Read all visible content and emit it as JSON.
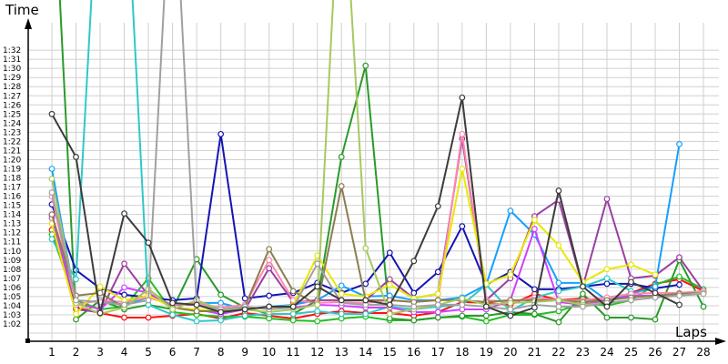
{
  "chart_data": {
    "type": "line",
    "title": "",
    "xlabel": "Laps",
    "ylabel": "Time",
    "x": [
      1,
      2,
      3,
      4,
      5,
      6,
      7,
      8,
      9,
      10,
      11,
      12,
      13,
      14,
      15,
      16,
      17,
      18,
      19,
      20,
      21,
      22,
      23,
      24,
      25,
      26,
      27,
      28
    ],
    "y_unit": "seconds",
    "ylim": [
      60.1,
      95.1
    ],
    "y_tick_labels": [
      "1:02",
      "1:03",
      "1:04",
      "1:05",
      "1:06",
      "1:07",
      "1:08",
      "1:09",
      "1:10",
      "1:11",
      "1:12",
      "1:13",
      "1:14",
      "1:15",
      "1:16",
      "1:17",
      "1:18",
      "1:19",
      "1:20",
      "1:21",
      "1:22",
      "1:23",
      "1:24",
      "1:25",
      "1:26",
      "1:27",
      "1:28",
      "1:29",
      "1:30",
      "1:31",
      "1:32"
    ],
    "x_tick_labels": [
      "1",
      "2",
      "3",
      "4",
      "5",
      "6",
      "7",
      "8",
      "9",
      "10",
      "11",
      "12",
      "13",
      "14",
      "15",
      "16",
      "17",
      "18",
      "19",
      "20",
      "21",
      "22",
      "23",
      "24",
      "25",
      "26",
      "27",
      "28"
    ],
    "grid": true,
    "series": [
      {
        "name": "red",
        "color": "#ff1010",
        "values": [
          72.3,
          63.8,
          63.2,
          62.7,
          62.7,
          62.9,
          63.1,
          62.6,
          63.2,
          62.9,
          62.6,
          63.1,
          63.4,
          63.2,
          63.2,
          62.9,
          63.3,
          64.4,
          64.3,
          64.1,
          65.3,
          64.6,
          64.8,
          64.5,
          65.4,
          66.4,
          66.9,
          65.6
        ]
      },
      {
        "name": "lime",
        "color": "#20c020",
        "values": [
          71.8,
          64.6,
          63.6,
          63.9,
          67.0,
          63.3,
          63.0,
          62.8,
          62.8,
          62.6,
          62.4,
          62.3,
          62.6,
          62.8,
          62.4,
          62.4,
          62.7,
          62.8,
          62.3,
          63.0,
          63.0,
          63.4,
          64.3,
          64.0,
          64.6,
          66.3,
          67.2,
          65.8
        ]
      },
      {
        "name": "dark-green",
        "color": "#2a9a2a",
        "values": [
          115,
          62.5,
          64.6,
          63.6,
          64.1,
          63.6,
          69.1,
          65.2,
          63.8,
          63.1,
          63.1,
          64.6,
          80.3,
          90.3,
          62.6,
          62.4,
          62.7,
          62.9,
          62.9,
          63.3,
          63.1,
          62.2,
          65.3,
          62.7,
          62.7,
          62.5,
          69.0,
          63.9
        ]
      },
      {
        "name": "navy",
        "color": "#1414b4",
        "values": [
          75.1,
          67.9,
          65.9,
          65.2,
          64.9,
          64.6,
          64.8,
          82.8,
          64.8,
          65.1,
          65.4,
          66.5,
          65.4,
          66.4,
          69.8,
          65.4,
          67.7,
          72.7,
          66.3,
          67.7,
          65.8,
          65.8,
          66.1,
          66.4,
          66.4,
          65.9,
          66.3,
          null
        ]
      },
      {
        "name": "sky-blue",
        "color": "#14a0ff",
        "values": [
          79.0,
          64.1,
          64.6,
          64.1,
          64.9,
          64.1,
          64.3,
          64.3,
          63.6,
          63.9,
          64.1,
          64.6,
          66.2,
          65.0,
          65.1,
          64.6,
          64.6,
          64.9,
          66.3,
          74.4,
          71.8,
          66.5,
          66.5,
          64.6,
          65.3,
          66.1,
          81.7,
          null
        ]
      },
      {
        "name": "cyan",
        "color": "#30c8c8",
        "values": [
          71.3,
          66.9,
          115,
          115,
          64.1,
          63.0,
          62.3,
          62.4,
          62.9,
          63.1,
          63.1,
          63.4,
          63.1,
          63.1,
          63.9,
          63.6,
          63.9,
          64.1,
          66.3,
          63.4,
          64.9,
          65.6,
          66.1,
          67.0,
          65.6,
          null,
          null,
          null
        ]
      },
      {
        "name": "purple",
        "color": "#9b3fa0",
        "values": [
          73.9,
          63.6,
          63.3,
          68.6,
          65.1,
          64.1,
          64.1,
          63.6,
          63.6,
          68.1,
          64.4,
          64.6,
          64.6,
          64.6,
          66.9,
          64.8,
          65.3,
          82.3,
          64.6,
          67.0,
          73.8,
          75.6,
          66.1,
          75.7,
          67.0,
          67.3,
          69.3,
          65.6
        ]
      },
      {
        "name": "magenta",
        "color": "#d040ff",
        "values": [
          73.6,
          64.3,
          63.6,
          66.0,
          65.4,
          63.8,
          63.6,
          63.1,
          63.6,
          63.8,
          63.8,
          64.1,
          64.0,
          63.8,
          63.8,
          63.3,
          63.3,
          63.6,
          63.6,
          64.6,
          72.4,
          64.4,
          64.1,
          64.6,
          65.1,
          65.1,
          65.3,
          65.6
        ]
      },
      {
        "name": "pink",
        "color": "#ff88b0",
        "values": [
          76.0,
          64.1,
          64.6,
          64.4,
          64.9,
          64.1,
          64.3,
          63.8,
          64.1,
          69.0,
          64.6,
          64.3,
          64.4,
          64.3,
          64.6,
          64.4,
          64.6,
          82.8,
          64.6,
          64.4,
          64.9,
          64.6,
          64.6,
          64.9,
          65.3,
          65.4,
          65.4,
          65.6
        ]
      },
      {
        "name": "yellow",
        "color": "#e8e800",
        "values": [
          73.0,
          63.1,
          66.1,
          64.6,
          65.1,
          63.8,
          63.6,
          63.4,
          63.6,
          63.8,
          64.0,
          69.5,
          65.3,
          65.0,
          66.3,
          64.8,
          65.3,
          79.0,
          66.4,
          67.4,
          73.4,
          70.6,
          66.6,
          68.0,
          68.5,
          67.4,
          null,
          null
        ]
      },
      {
        "name": "olive",
        "color": "#8c7d50",
        "values": [
          74.0,
          65.1,
          65.4,
          63.8,
          65.8,
          63.8,
          63.4,
          63.4,
          63.9,
          70.2,
          65.6,
          64.1,
          77.1,
          64.6,
          64.6,
          64.4,
          64.6,
          64.6,
          64.4,
          64.6,
          64.6,
          64.6,
          64.4,
          64.6,
          64.9,
          65.1,
          65.3,
          65.4
        ]
      },
      {
        "name": "light-olive",
        "color": "#a8c860",
        "values": [
          77.9,
          64.3,
          63.1,
          63.8,
          65.8,
          63.6,
          64.6,
          63.6,
          63.6,
          63.3,
          63.6,
          64.1,
          115,
          70.3,
          63.1,
          63.6,
          64.1,
          64.8,
          64.1,
          64.3,
          64.4,
          64.6,
          64.1,
          64.3,
          64.6,
          64.9,
          65.1,
          65.4
        ]
      },
      {
        "name": "gray",
        "color": "#a0a0a0",
        "values": [
          76.4,
          64.6,
          64.4,
          64.1,
          64.6,
          115,
          64.1,
          63.6,
          63.9,
          63.6,
          63.8,
          68.6,
          64.3,
          64.1,
          64.1,
          63.9,
          64.1,
          64.1,
          63.9,
          63.6,
          64.1,
          63.9,
          63.9,
          64.3,
          64.6,
          64.9,
          65.1,
          65.3
        ]
      },
      {
        "name": "black",
        "color": "#3c3c3c",
        "values": [
          85.0,
          80.3,
          63.2,
          74.1,
          70.9,
          64.3,
          64.1,
          63.3,
          63.6,
          63.9,
          63.9,
          66.1,
          64.6,
          64.6,
          64.1,
          68.9,
          74.9,
          86.8,
          63.9,
          62.9,
          63.8,
          76.6,
          66.1,
          63.9,
          66.6,
          65.4,
          64.1,
          null
        ]
      }
    ]
  }
}
